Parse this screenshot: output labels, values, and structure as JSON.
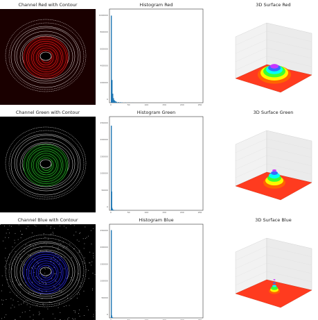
{
  "rows": [
    {
      "channel": "red",
      "contour_title": "Channel Red with Contour",
      "hist_title": "Histogram Red",
      "surface_title": "3D Surface Red",
      "contour_color": "#ff1a1a",
      "image_color": "#3a0000",
      "hist_ymax": "1200000",
      "hist_yticks": [
        "1000000",
        "800000",
        "600000",
        "400000",
        "200000",
        "0"
      ],
      "hist_xticks": [
        "0",
        "50",
        "100",
        "150",
        "200",
        "250"
      ]
    },
    {
      "channel": "green",
      "contour_title": "Channel Green with Contour",
      "hist_title": "Histogram Green",
      "surface_title": "3D Surface Green",
      "contour_color": "#33cc33",
      "image_color": "#001a00",
      "hist_yticks": [
        "250000",
        "200000",
        "150000",
        "100000",
        "50000",
        "0"
      ],
      "hist_xticks": [
        "0",
        "50",
        "100",
        "150",
        "200",
        "250"
      ]
    },
    {
      "channel": "blue",
      "contour_title": "Channel Blue with Contour",
      "hist_title": "Histogram Blue",
      "surface_title": "3D Surface Blue",
      "contour_color": "#3333ff",
      "image_color": "#00001a",
      "hist_yticks": [
        "250000",
        "200000",
        "150000",
        "100000",
        "50000",
        "0"
      ],
      "hist_xticks": [
        "0",
        "50",
        "100",
        "150",
        "200",
        "250"
      ]
    }
  ],
  "chart_data": [
    {
      "type": "bar",
      "title": "Histogram Red",
      "x": [
        0,
        2,
        4,
        6,
        8,
        10,
        12,
        15,
        20,
        25,
        30,
        40,
        50,
        60
      ],
      "values": [
        1150000,
        300000,
        120000,
        60000,
        35000,
        25000,
        18000,
        12000,
        9000,
        7000,
        5000,
        3000,
        2000,
        1000
      ],
      "ylim": [
        0,
        1200000
      ],
      "xlim": [
        0,
        255
      ]
    },
    {
      "type": "bar",
      "title": "Histogram Green",
      "x": [
        0,
        1,
        2,
        3,
        4,
        6,
        8,
        10,
        15,
        20
      ],
      "values": [
        270000,
        60000,
        8000,
        4000,
        2500,
        1500,
        1000,
        800,
        500,
        300
      ],
      "ylim": [
        0,
        290000
      ],
      "xlim": [
        0,
        255
      ]
    },
    {
      "type": "bar",
      "title": "Histogram Blue",
      "x": [
        0,
        1,
        2,
        3,
        4,
        6
      ],
      "values": [
        280000,
        8000,
        3000,
        1500,
        800,
        400
      ],
      "ylim": [
        0,
        290000
      ],
      "xlim": [
        0,
        255
      ]
    }
  ]
}
